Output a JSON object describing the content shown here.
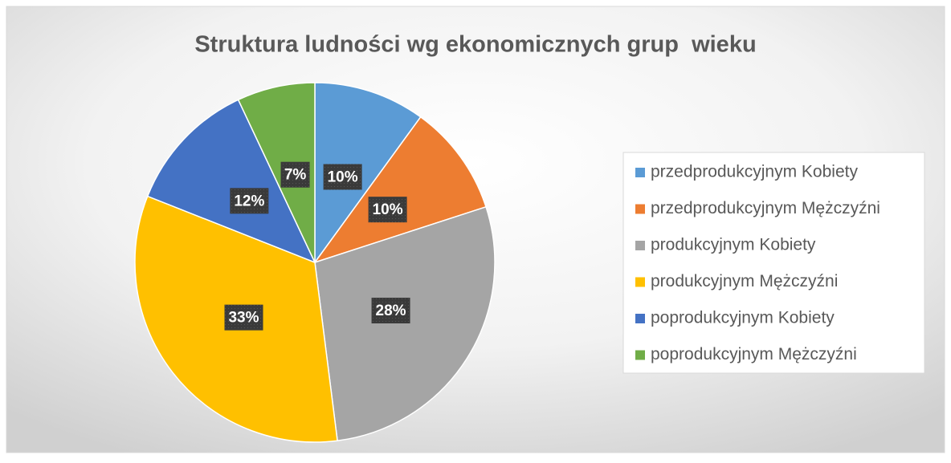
{
  "chart_data": {
    "type": "pie",
    "title": "Struktura ludności wg ekonomicznych grup  wieku",
    "categories": [
      "przedprodukcyjnym Kobiety",
      "przedprodukcyjnym Mężczyźni",
      "produkcyjnym Kobiety",
      "produkcyjnym Mężczyźni",
      "poprodukcyjnym Kobiety",
      "poprodukcyjnym Mężczyźni"
    ],
    "values": [
      10,
      10,
      28,
      33,
      12,
      7
    ],
    "value_labels": [
      "10%",
      "10%",
      "28%",
      "33%",
      "12%",
      "7%"
    ],
    "colors": [
      "#5b9bd5",
      "#ed7d31",
      "#a5a5a5",
      "#ffc000",
      "#4472c4",
      "#70ad47"
    ],
    "legend": "right"
  }
}
